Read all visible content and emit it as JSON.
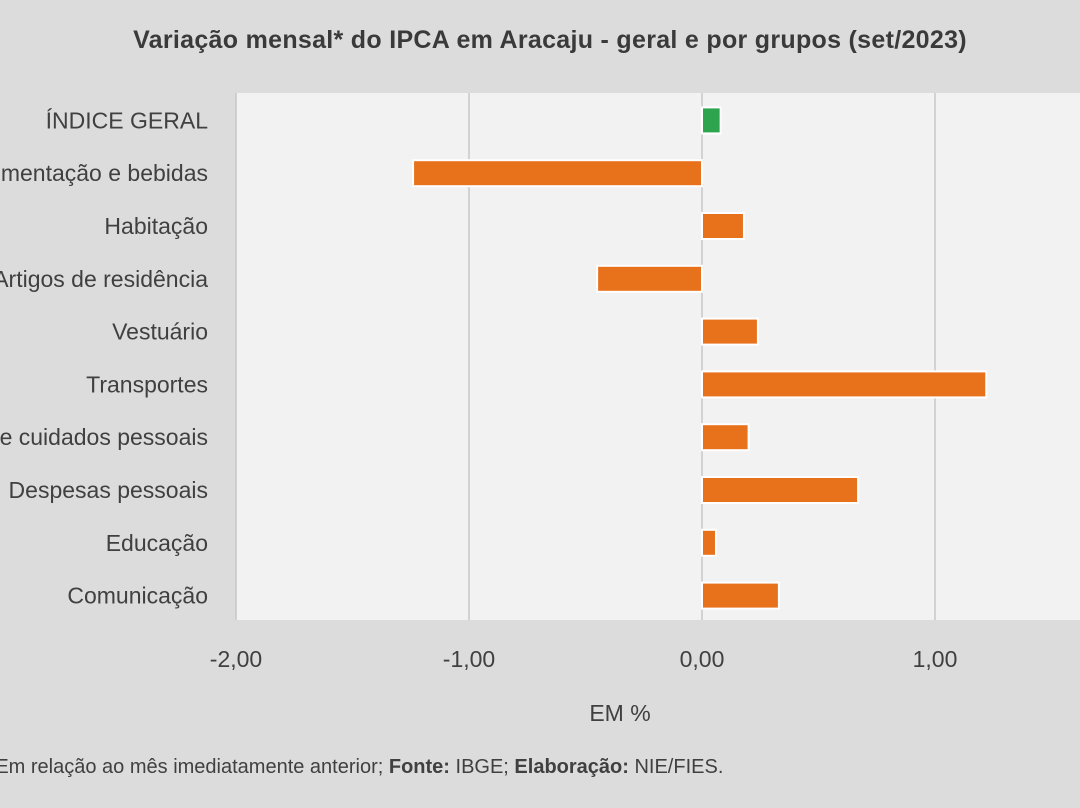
{
  "chart_data": {
    "type": "bar",
    "orientation": "horizontal",
    "title": "Variação  mensal*  do  IPCA  em  Aracaju   - geral  e  por  grupos  (set/2023)",
    "xlabel": "EM %",
    "ylabel": "",
    "categories": [
      "ÍNDICE GERAL",
      "Alimentação e bebidas",
      "Habitação",
      "Artigos de residência",
      "Vestuário",
      "Transportes",
      "Saúde e cuidados pessoais",
      "Despesas pessoais",
      "Educação",
      "Comunicação"
    ],
    "values": [
      0.08,
      -1.24,
      0.18,
      -0.45,
      0.24,
      1.22,
      0.2,
      0.67,
      0.06,
      0.33
    ],
    "xlim": [
      -2,
      1.5
    ],
    "xticks": [
      -2,
      -1,
      0,
      1
    ],
    "xtick_labels": [
      "-2,00",
      "-1,00",
      "0,00",
      "1,00"
    ],
    "grid": "vertical",
    "legend": "none",
    "highlight_index": 0
  },
  "colors": {
    "bar": "#e8711c",
    "highlight_bar": "#2ea44f",
    "bar_outline": "#ffffff",
    "plot_background": "#f2f2f2",
    "page_background": "#dcdcdc",
    "gridline": "#c8c8c8",
    "text": "#404040"
  },
  "footnote": {
    "text": "* Em relação ao mês imediatamente  anterior; ",
    "fonte_label": "Fonte:",
    "fonte_value": " IBGE; ",
    "elaboracao_label": "Elaboração:",
    "elaboracao_value": " NIE/FIES."
  }
}
